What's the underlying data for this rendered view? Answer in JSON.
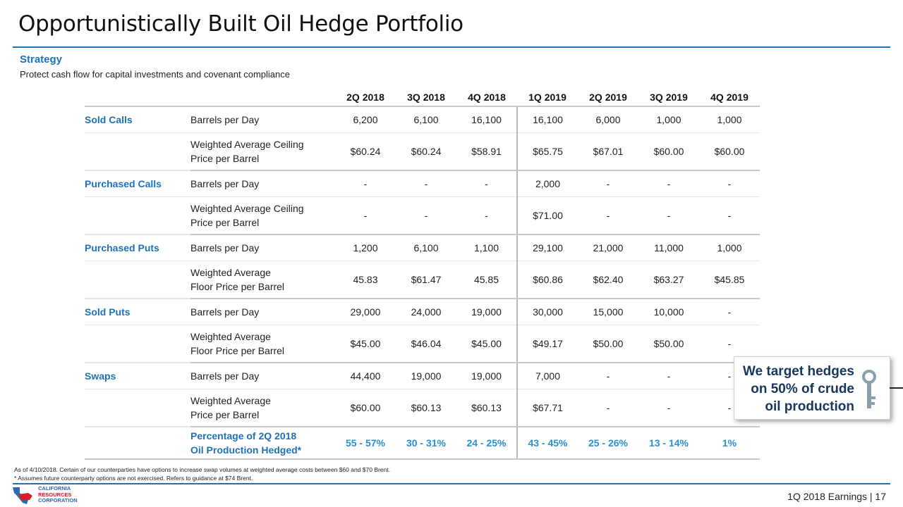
{
  "title": "Opportunistically Built Oil Hedge Portfolio",
  "strategy": {
    "heading": "Strategy",
    "subtitle": "Protect cash flow for capital investments and covenant compliance"
  },
  "table": {
    "quarters": [
      "2Q 2018",
      "3Q 2018",
      "4Q 2018",
      "1Q 2019",
      "2Q 2019",
      "3Q 2019",
      "4Q 2019"
    ],
    "groups": [
      {
        "category": "Sold Calls",
        "rows": [
          {
            "metric_l1": "Barrels per Day",
            "metric_l2": "",
            "values": [
              "6,200",
              "6,100",
              "16,100",
              "16,100",
              "6,000",
              "1,000",
              "1,000"
            ]
          },
          {
            "metric_l1": "Weighted Average Ceiling",
            "metric_l2": "Price per Barrel",
            "values": [
              "$60.24",
              "$60.24",
              "$58.91",
              "$65.75",
              "$67.01",
              "$60.00",
              "$60.00"
            ]
          }
        ]
      },
      {
        "category": "Purchased Calls",
        "rows": [
          {
            "metric_l1": "Barrels per Day",
            "metric_l2": "",
            "values": [
              "-",
              "-",
              "-",
              "2,000",
              "-",
              "-",
              "-"
            ]
          },
          {
            "metric_l1": "Weighted Average Ceiling",
            "metric_l2": "Price per Barrel",
            "values": [
              "-",
              "-",
              "-",
              "$71.00",
              "-",
              "-",
              "-"
            ]
          }
        ]
      },
      {
        "category": "Purchased Puts",
        "rows": [
          {
            "metric_l1": "Barrels per Day",
            "metric_l2": "",
            "values": [
              "1,200",
              "6,100",
              "1,100",
              "29,100",
              "21,000",
              "11,000",
              "1,000"
            ]
          },
          {
            "metric_l1": "Weighted Average",
            "metric_l2": "Floor Price per Barrel",
            "values": [
              "45.83",
              "$61.47",
              "45.85",
              "$60.86",
              "$62.40",
              "$63.27",
              "$45.85"
            ]
          }
        ]
      },
      {
        "category": "Sold Puts",
        "rows": [
          {
            "metric_l1": "Barrels per Day",
            "metric_l2": "",
            "values": [
              "29,000",
              "24,000",
              "19,000",
              "30,000",
              "15,000",
              "10,000",
              "-"
            ]
          },
          {
            "metric_l1": "Weighted Average",
            "metric_l2": "Floor Price per Barrel",
            "values": [
              "$45.00",
              "$46.04",
              "$45.00",
              "$49.17",
              "$50.00",
              "$50.00",
              "-"
            ]
          }
        ]
      },
      {
        "category": "Swaps",
        "rows": [
          {
            "metric_l1": "Barrels per Day",
            "metric_l2": "",
            "values": [
              "44,400",
              "19,000",
              "19,000",
              "7,000",
              "-",
              "-",
              "-"
            ]
          },
          {
            "metric_l1": "Weighted Average",
            "metric_l2": "Price per Barrel",
            "values": [
              "$60.00",
              "$60.13",
              "$60.13",
              "$67.71",
              "-",
              "-",
              "-"
            ]
          }
        ]
      }
    ],
    "percentage_row": {
      "label_l1": "Percentage of 2Q 2018",
      "label_l2": "Oil Production Hedged*",
      "values": [
        "55 - 57%",
        "30 - 31%",
        "24 - 25%",
        "43 - 45%",
        "25 - 26%",
        "13 - 14%",
        "1%"
      ]
    }
  },
  "callout": {
    "line1": "We target hedges",
    "line2": "on 50% of crude",
    "line3": "oil production",
    "icon": "key-icon"
  },
  "footnotes": {
    "note1": "As of 4/10/2018. Certain of our counterparties have options to increase swap volumes at weighted average costs between $60 and $70 Brent.",
    "note2": "* Assumes future counterparty options are not exercised. Refers to guidance at $74 Brent."
  },
  "logo": {
    "line1": "CALIFORNIA",
    "line2": "RESOURCES",
    "line3": "CORPORATION"
  },
  "footer": {
    "label": "1Q 2018 Earnings  | 17"
  },
  "colors": {
    "accent_blue": "#1f72b8",
    "pct_blue": "#2a8fd4",
    "callout_navy": "#17375e",
    "logo_red": "#d32027"
  }
}
